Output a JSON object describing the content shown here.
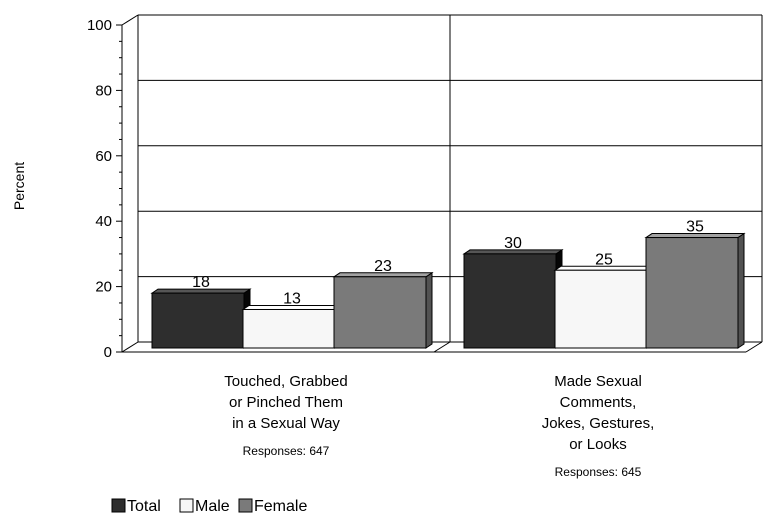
{
  "chart_data": {
    "type": "bar",
    "title": "",
    "xlabel": "",
    "ylabel": "Percent",
    "ylim": [
      0,
      100
    ],
    "yticks": [
      0,
      20,
      40,
      60,
      80,
      100
    ],
    "grid": true,
    "legend_position": "bottom-left",
    "categories": [
      {
        "label_lines": [
          "Touched, Grabbed",
          "or Pinched Them",
          "in a Sexual Way"
        ],
        "responses": "Responses:  647"
      },
      {
        "label_lines": [
          "Made Sexual",
          "Comments,",
          "Jokes, Gestures,",
          "or Looks"
        ],
        "responses": "Responses:  645"
      }
    ],
    "series": [
      {
        "name": "Total",
        "values": [
          18,
          30
        ],
        "color": "#2e2e2e"
      },
      {
        "name": "Male",
        "values": [
          13,
          25
        ],
        "color": "#f7f7f7"
      },
      {
        "name": "Female",
        "values": [
          23,
          35
        ],
        "color": "#7a7a7a"
      }
    ]
  }
}
